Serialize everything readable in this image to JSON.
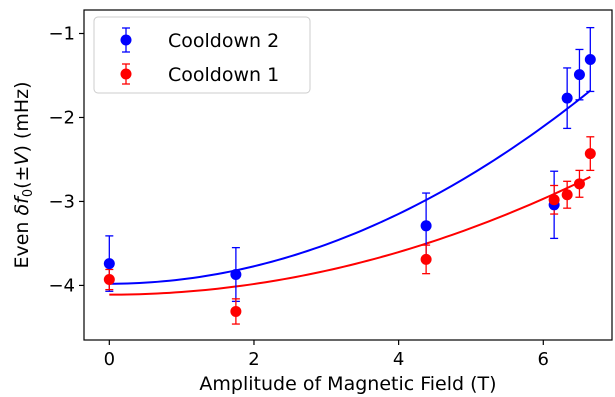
{
  "chart_data": {
    "type": "scatter",
    "xlabel": "Amplitude of Magnetic Field (T)",
    "ylabel_prefix": "Even ",
    "ylabel_symbol": "δf",
    "ylabel_sub": "0",
    "ylabel_mid": "(±",
    "ylabel_var": "V",
    "ylabel_suffix": ") (mHz)",
    "xlim": [
      -0.35,
      6.95
    ],
    "ylim": [
      -4.65,
      -0.72
    ],
    "xticks": [
      0,
      2,
      4,
      6
    ],
    "xtick_labels": [
      "0",
      "2",
      "4",
      "6"
    ],
    "yticks": [
      -4,
      -3,
      -2,
      -1
    ],
    "ytick_labels": [
      "−4",
      "−3",
      "−2",
      "−1"
    ],
    "grid": false,
    "legend_position": "top-left",
    "series": [
      {
        "name": "Cooldown 2",
        "color": "#0000ff",
        "x": [
          0,
          1.75,
          4.38,
          6.15,
          6.33,
          6.5,
          6.65
        ],
        "y": [
          -3.74,
          -3.87,
          -3.29,
          -3.04,
          -1.77,
          -1.49,
          -1.31
        ],
        "err": [
          0.33,
          0.32,
          0.39,
          0.4,
          0.36,
          0.3,
          0.38
        ],
        "fit": {
          "a": -3.98,
          "b": 0.052
        }
      },
      {
        "name": "Cooldown 1",
        "color": "#ff0000",
        "x": [
          0,
          1.75,
          4.38,
          6.15,
          6.33,
          6.5,
          6.65
        ],
        "y": [
          -3.93,
          -4.31,
          -3.69,
          -2.98,
          -2.92,
          -2.79,
          -2.43
        ],
        "err": [
          0.12,
          0.15,
          0.17,
          0.17,
          0.16,
          0.16,
          0.2
        ],
        "fit": {
          "a": -4.11,
          "b": 0.0317
        }
      }
    ]
  }
}
